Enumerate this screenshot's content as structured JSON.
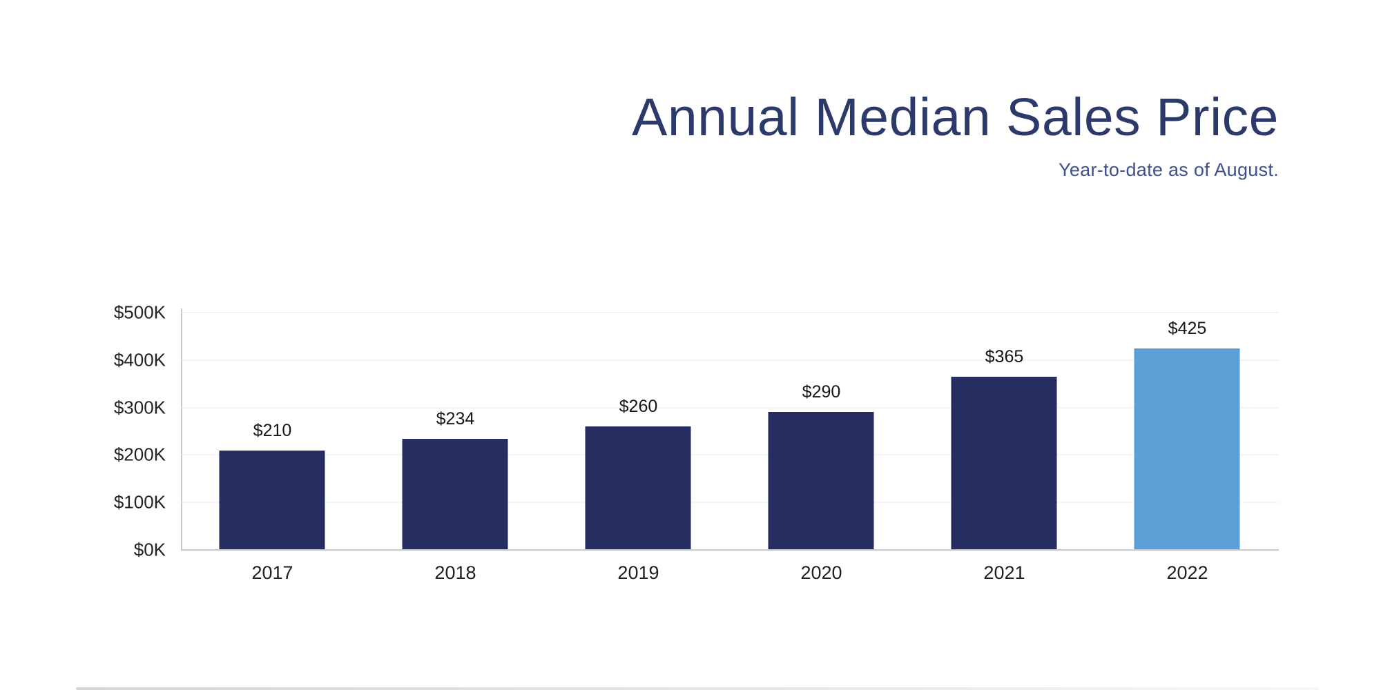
{
  "chart_data": {
    "type": "bar",
    "title": "Annual Median Sales Price",
    "subtitle": "Year-to-date as of August.",
    "categories": [
      "2017",
      "2018",
      "2019",
      "2020",
      "2021",
      "2022"
    ],
    "values": [
      210,
      234,
      260,
      290,
      365,
      425
    ],
    "value_labels": [
      "$210",
      "$234",
      "$260",
      "$290",
      "$365",
      "$425"
    ],
    "xlabel": "",
    "ylabel": "",
    "ylim": [
      0,
      500
    ],
    "y_tick_labels": [
      "$0K",
      "$100K",
      "$200K",
      "$300K",
      "$400K",
      "$500K"
    ],
    "grid": true,
    "legend": false,
    "highlight_index": 5,
    "colors": {
      "bar": "#262d61",
      "bar_highlight": "#5b9fd6",
      "title": "#2c3a6b",
      "subtitle": "#3f508c",
      "gridline": "#e9ebf0",
      "axis_line": "#c3c8d1",
      "tick_label": "#232327",
      "value_label": "#161619"
    }
  }
}
